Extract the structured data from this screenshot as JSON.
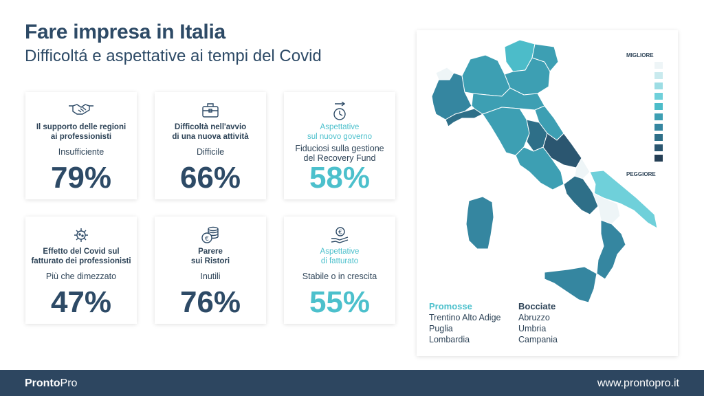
{
  "header": {
    "title": "Fare impresa in Italia",
    "subtitle": "Difficoltá e aspettative ai tempi del Covid"
  },
  "cards": [
    {
      "icon": "handshake-icon",
      "label_line1": "Il supporto delle regioni",
      "label_line2": "ai professionisti",
      "sub_line1": "Insufficiente",
      "sub_line2": "",
      "value": "79%",
      "accent": "#2d4a66"
    },
    {
      "icon": "briefcase-icon",
      "label_line1": "Difficoltà nell'avvio",
      "label_line2": "di una nuova attività",
      "sub_line1": "Difficile",
      "sub_line2": "",
      "value": "66%",
      "accent": "#2d4a66"
    },
    {
      "icon": "stopwatch-icon",
      "label_line1": "Aspettative",
      "label_line2": "sul nuovo governo",
      "sub_line1": "Fiduciosi sulla gestione",
      "sub_line2": "del Recovery Fund",
      "value": "58%",
      "accent": "#4cc0cc"
    },
    {
      "icon": "virus-icon",
      "label_line1": "Effetto del Covid sul",
      "label_line2": "fatturato dei professionisti",
      "sub_line1": "Più che dimezzato",
      "sub_line2": "",
      "value": "47%",
      "accent": "#2d4a66"
    },
    {
      "icon": "coins-euro-icon",
      "label_line1": "Parere",
      "label_line2": "sui Ristori",
      "sub_line1": "Inutili",
      "sub_line2": "",
      "value": "76%",
      "accent": "#2d4a66"
    },
    {
      "icon": "hand-euro-icon",
      "label_line1": "Aspettative",
      "label_line2": "di fatturato",
      "sub_line1": "Stabile o in crescita",
      "sub_line2": "",
      "value": "55%",
      "accent": "#4cc0cc"
    }
  ],
  "map": {
    "legend_best": "MIGLIORE",
    "legend_worst": "PEGGIORE",
    "scale_colors": [
      "#eef5f7",
      "#c9eaee",
      "#9ddde4",
      "#6fd0da",
      "#4cbcc9",
      "#3d9fb3",
      "#3586a0",
      "#2e6f88",
      "#2b5670",
      "#253f55"
    ],
    "promosse_title": "Promosse",
    "promosse": [
      "Trentino Alto Adige",
      "Puglia",
      "Lombardia"
    ],
    "bocciate_title": "Bocciate",
    "bocciate": [
      "Abruzzo",
      "Umbria",
      "Campania"
    ]
  },
  "footer": {
    "brand_a": "Pronto",
    "brand_b": "Pro",
    "website": "www.prontopro.it"
  }
}
